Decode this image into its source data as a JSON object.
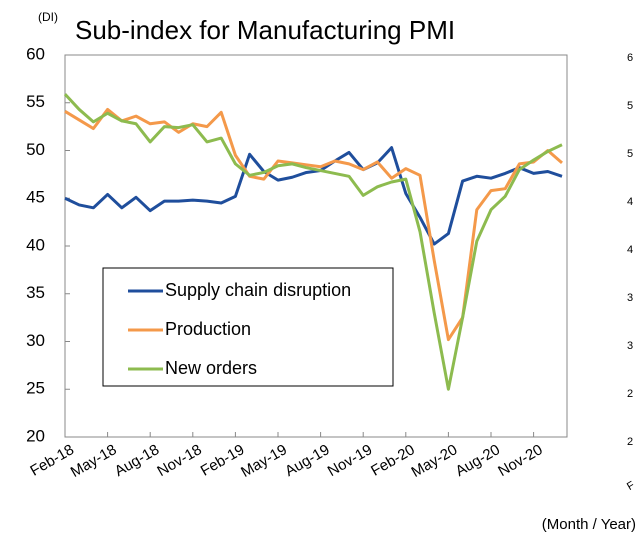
{
  "chart_data": {
    "type": "line",
    "title": "Sub-index for Manufacturing PMI",
    "y_unit": "(DI)",
    "x_label": "(Month / Year)",
    "categories": [
      "Feb-18",
      null,
      null,
      "May-18",
      null,
      null,
      "Aug-18",
      null,
      null,
      "Nov-18",
      null,
      null,
      "Feb-19",
      null,
      null,
      "May-19",
      null,
      null,
      "Aug-19",
      null,
      null,
      "Nov-19",
      null,
      null,
      "Feb-20",
      null,
      null,
      "May-20",
      null,
      null,
      "Aug-20",
      null,
      null,
      "Nov-20",
      null,
      null
    ],
    "series": [
      {
        "name": "Supply chain disruption",
        "color": "#1f4e9c",
        "values": [
          45,
          44.3,
          44,
          45.4,
          44,
          45.1,
          43.7,
          44.7,
          44.7,
          44.8,
          44.7,
          44.5,
          45.2,
          49.6,
          47.8,
          46.9,
          47.2,
          47.7,
          47.9,
          48.9,
          49.8,
          48.0,
          48.7,
          50.3,
          45.5,
          43,
          40.2,
          41.3,
          46.8,
          47.3,
          47.1,
          47.6,
          48.2,
          47.6,
          47.8,
          47.3
        ]
      },
      {
        "name": "Production",
        "color": "#f4994a",
        "values": [
          54.1,
          53.2,
          52.3,
          54.3,
          53.1,
          53.6,
          52.8,
          53.0,
          51.9,
          52.8,
          52.5,
          54.0,
          49.5,
          47.3,
          47.0,
          48.9,
          48.7,
          48.5,
          48.3,
          48.9,
          48.6,
          48.0,
          48.8,
          47.1,
          48.1,
          47.4,
          38.5,
          30.2,
          32.5,
          43.8,
          45.8,
          46.0,
          48.6,
          48.8,
          50.0,
          48.7
        ]
      },
      {
        "name": "New orders",
        "color": "#8dbb4f",
        "values": [
          55.9,
          54.3,
          53.0,
          53.9,
          53.1,
          52.8,
          50.9,
          52.5,
          52.4,
          52.7,
          50.9,
          51.3,
          48.6,
          47.4,
          47.7,
          48.4,
          48.6,
          48.2,
          47.9,
          47.6,
          47.3,
          45.3,
          46.2,
          46.7,
          47.0,
          41.5,
          33,
          25.0,
          32.5,
          40.5,
          43.8,
          45.2,
          48.0,
          49.0,
          49.9,
          50.6
        ]
      }
    ],
    "ylim": [
      20,
      60
    ],
    "yticks": [
      20,
      25,
      30,
      35,
      40,
      45,
      50,
      55,
      60
    ],
    "grid": false,
    "legend": "lower-left"
  },
  "clipped_panel": {
    "tick_labels": [
      "6",
      "5",
      "5",
      "4",
      "4",
      "3",
      "3",
      "2",
      "2"
    ],
    "x_tick_fragment": "F"
  }
}
